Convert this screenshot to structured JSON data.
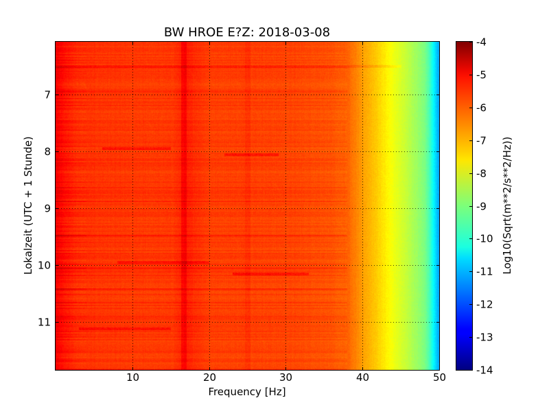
{
  "chart_data": {
    "type": "heatmap",
    "title": "BW HROE E?Z: 2018-03-08",
    "xlabel": "Frequency [Hz]",
    "ylabel": "Lokalzeit (UTC + 1 Stunde)",
    "xlim": [
      0,
      50
    ],
    "ylim": [
      11.85,
      6.07
    ],
    "y_inverted": true,
    "x_ticks": [
      "10",
      "20",
      "30",
      "40",
      "50"
    ],
    "y_ticks": [
      "7",
      "8",
      "9",
      "10",
      "11"
    ],
    "grid": true,
    "colormap": "jet",
    "colorbar": {
      "label": "Log10(Sqrt(m**2/s**2/Hz))",
      "range": [
        -14,
        -4
      ],
      "ticks": [
        "-4",
        "-5",
        "-6",
        "-7",
        "-8",
        "-9",
        "-10",
        "-11",
        "-12",
        "-13",
        "-14"
      ]
    },
    "spectrum_profile": {
      "frequency_hz": [
        0,
        1,
        3,
        6,
        10,
        15,
        17,
        20,
        25,
        30,
        35,
        38,
        40,
        42,
        44,
        46,
        48,
        49.5,
        50
      ],
      "level": [
        -5.1,
        -5.4,
        -5.7,
        -5.75,
        -5.8,
        -5.8,
        -5.55,
        -5.85,
        -5.85,
        -5.9,
        -6.0,
        -6.2,
        -6.8,
        -7.3,
        -7.9,
        -8.4,
        -9.0,
        -10.0,
        -10.3
      ]
    },
    "features": [
      {
        "type": "line",
        "frequency_hz": 16.7,
        "delta": 0.35
      },
      {
        "type": "line",
        "frequency_hz": 25.0,
        "delta": 0.15
      },
      {
        "type": "event",
        "time": 7.95,
        "freq_range": [
          6,
          15
        ],
        "delta": 0.5
      },
      {
        "type": "event",
        "time": 8.05,
        "freq_range": [
          22,
          29
        ],
        "delta": 0.5
      },
      {
        "type": "event",
        "time": 9.95,
        "freq_range": [
          8,
          20
        ],
        "delta": 0.45
      },
      {
        "type": "event",
        "time": 10.15,
        "freq_range": [
          23,
          33
        ],
        "delta": 0.55
      },
      {
        "type": "event",
        "time": 11.12,
        "freq_range": [
          3,
          15
        ],
        "delta": 0.45
      },
      {
        "type": "event",
        "time": 6.5,
        "freq_range": [
          0,
          45
        ],
        "delta": 0.3
      }
    ]
  }
}
